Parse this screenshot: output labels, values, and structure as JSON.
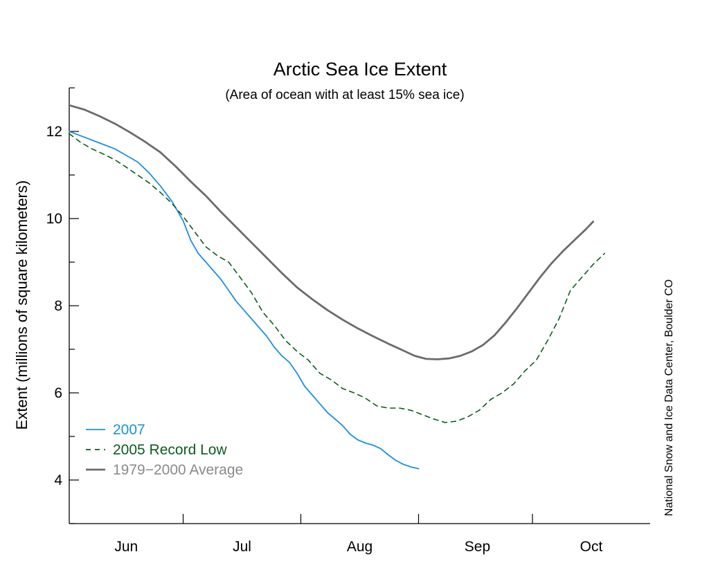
{
  "chart_data": {
    "type": "line",
    "title": "Arctic Sea Ice Extent",
    "subtitle": "(Area of ocean with at least 15% sea ice)",
    "ylabel": "Extent (millions of square kilometers)",
    "xlabel": "",
    "credit": "National Snow and Ice Data Center, Boulder CO",
    "ylim": [
      3,
      13
    ],
    "yticks": [
      4,
      6,
      8,
      10,
      12
    ],
    "xlim": [
      0,
      153
    ],
    "x_unit": "days from June 1",
    "month_labels": [
      {
        "label": "Jun",
        "x": 15
      },
      {
        "label": "Jul",
        "x": 45.5
      },
      {
        "label": "Aug",
        "x": 76.5
      },
      {
        "label": "Sep",
        "x": 107.5
      },
      {
        "label": "Oct",
        "x": 137.5
      }
    ],
    "month_boundaries": [
      30,
      61,
      92,
      122
    ],
    "grid": false,
    "legend_position": "bottom-left",
    "series": [
      {
        "name": "2007",
        "color": "#1a90e0",
        "dash": "solid",
        "points": [
          [
            0,
            12.0
          ],
          [
            3,
            11.9
          ],
          [
            6,
            11.8
          ],
          [
            9,
            11.7
          ],
          [
            12,
            11.6
          ],
          [
            15,
            11.45
          ],
          [
            18,
            11.3
          ],
          [
            21,
            11.05
          ],
          [
            24,
            10.75
          ],
          [
            27,
            10.4
          ],
          [
            30,
            9.95
          ],
          [
            32,
            9.5
          ],
          [
            34,
            9.2
          ],
          [
            36,
            9.0
          ],
          [
            38,
            8.8
          ],
          [
            40,
            8.6
          ],
          [
            42,
            8.35
          ],
          [
            44,
            8.1
          ],
          [
            46,
            7.9
          ],
          [
            48,
            7.7
          ],
          [
            50,
            7.5
          ],
          [
            52,
            7.3
          ],
          [
            54,
            7.05
          ],
          [
            56,
            6.85
          ],
          [
            58,
            6.7
          ],
          [
            60,
            6.45
          ],
          [
            62,
            6.15
          ],
          [
            64,
            5.95
          ],
          [
            66,
            5.75
          ],
          [
            68,
            5.55
          ],
          [
            70,
            5.4
          ],
          [
            72,
            5.25
          ],
          [
            74,
            5.05
          ],
          [
            76,
            4.92
          ],
          [
            78,
            4.85
          ],
          [
            80,
            4.8
          ],
          [
            82,
            4.72
          ],
          [
            84,
            4.58
          ],
          [
            86,
            4.45
          ],
          [
            88,
            4.36
          ],
          [
            90,
            4.3
          ],
          [
            92,
            4.26
          ]
        ]
      },
      {
        "name": "2005 Record Low",
        "color": "#0e5a1e",
        "dash": "dashed",
        "points": [
          [
            0,
            11.95
          ],
          [
            3,
            11.75
          ],
          [
            6,
            11.6
          ],
          [
            9,
            11.48
          ],
          [
            12,
            11.35
          ],
          [
            15,
            11.18
          ],
          [
            18,
            11.0
          ],
          [
            21,
            10.82
          ],
          [
            24,
            10.6
          ],
          [
            27,
            10.35
          ],
          [
            30,
            10.05
          ],
          [
            33,
            9.7
          ],
          [
            36,
            9.35
          ],
          [
            39,
            9.15
          ],
          [
            42,
            9.0
          ],
          [
            45,
            8.65
          ],
          [
            48,
            8.3
          ],
          [
            51,
            7.85
          ],
          [
            54,
            7.55
          ],
          [
            57,
            7.2
          ],
          [
            60,
            6.95
          ],
          [
            63,
            6.75
          ],
          [
            66,
            6.45
          ],
          [
            69,
            6.3
          ],
          [
            72,
            6.1
          ],
          [
            75,
            6.0
          ],
          [
            78,
            5.88
          ],
          [
            81,
            5.7
          ],
          [
            84,
            5.65
          ],
          [
            87,
            5.65
          ],
          [
            90,
            5.6
          ],
          [
            93,
            5.5
          ],
          [
            96,
            5.4
          ],
          [
            99,
            5.32
          ],
          [
            102,
            5.35
          ],
          [
            105,
            5.45
          ],
          [
            108,
            5.6
          ],
          [
            111,
            5.85
          ],
          [
            114,
            6.0
          ],
          [
            117,
            6.2
          ],
          [
            120,
            6.5
          ],
          [
            123,
            6.75
          ],
          [
            126,
            7.2
          ],
          [
            129,
            7.7
          ],
          [
            132,
            8.35
          ],
          [
            135,
            8.65
          ],
          [
            138,
            8.95
          ],
          [
            141,
            9.2
          ]
        ]
      },
      {
        "name": "1979−2000 Average",
        "color": "#6b6b6b",
        "dash": "solid",
        "points": [
          [
            0,
            12.6
          ],
          [
            4,
            12.5
          ],
          [
            8,
            12.35
          ],
          [
            12,
            12.18
          ],
          [
            16,
            11.98
          ],
          [
            20,
            11.76
          ],
          [
            24,
            11.52
          ],
          [
            28,
            11.2
          ],
          [
            32,
            10.85
          ],
          [
            36,
            10.52
          ],
          [
            40,
            10.15
          ],
          [
            44,
            9.8
          ],
          [
            48,
            9.45
          ],
          [
            52,
            9.1
          ],
          [
            56,
            8.75
          ],
          [
            60,
            8.42
          ],
          [
            64,
            8.15
          ],
          [
            68,
            7.9
          ],
          [
            72,
            7.68
          ],
          [
            76,
            7.48
          ],
          [
            80,
            7.3
          ],
          [
            84,
            7.13
          ],
          [
            88,
            6.97
          ],
          [
            91,
            6.85
          ],
          [
            94,
            6.78
          ],
          [
            97,
            6.77
          ],
          [
            100,
            6.79
          ],
          [
            103,
            6.85
          ],
          [
            106,
            6.95
          ],
          [
            109,
            7.1
          ],
          [
            112,
            7.32
          ],
          [
            115,
            7.62
          ],
          [
            118,
            7.95
          ],
          [
            121,
            8.3
          ],
          [
            124,
            8.65
          ],
          [
            127,
            8.97
          ],
          [
            130,
            9.25
          ],
          [
            133,
            9.5
          ],
          [
            136,
            9.75
          ],
          [
            138,
            9.93
          ]
        ]
      }
    ]
  }
}
